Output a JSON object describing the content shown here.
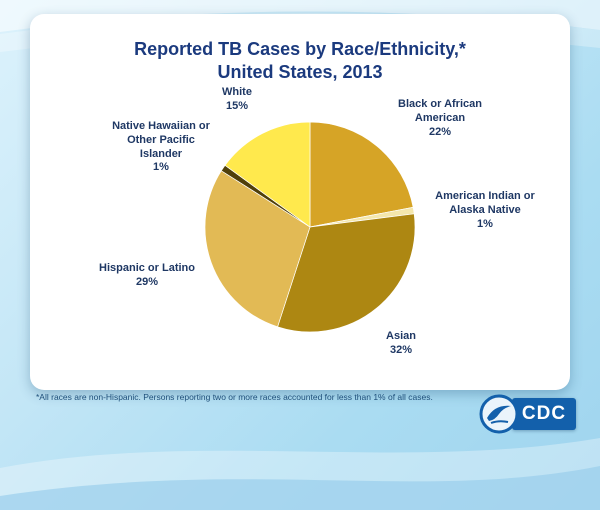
{
  "slide": {
    "title_line1": "Reported TB Cases by Race/Ethnicity,*",
    "title_line2": "United States, 2013",
    "footnote": "*All races are non-Hispanic. Persons reporting two or more races accounted for less than 1% of all cases."
  },
  "logo": {
    "cdc_text": "CDC"
  },
  "chart_data": {
    "type": "pie",
    "title": "Reported TB Cases by Race/Ethnicity, United States, 2013",
    "start_angle_deg": 0,
    "start_position": "12-o'clock",
    "direction": "clockwise",
    "legend_position": "labels-around-pie",
    "slices": [
      {
        "label": "Black or African American",
        "value": 22,
        "pct": "22%",
        "color": "#d6a426"
      },
      {
        "label": "American Indian or Alaska Native",
        "value": 1,
        "pct": "1%",
        "color": "#f4e7ac"
      },
      {
        "label": "Asian",
        "value": 32,
        "pct": "32%",
        "color": "#ad8712"
      },
      {
        "label": "Hispanic or Latino",
        "value": 29,
        "pct": "29%",
        "color": "#e2ba55"
      },
      {
        "label": "Native Hawaiian or Other Pacific Islander",
        "value": 1,
        "pct": "1%",
        "color": "#50400a"
      },
      {
        "label": "White",
        "value": 15,
        "pct": "15%",
        "color": "#ffe94d"
      }
    ]
  }
}
